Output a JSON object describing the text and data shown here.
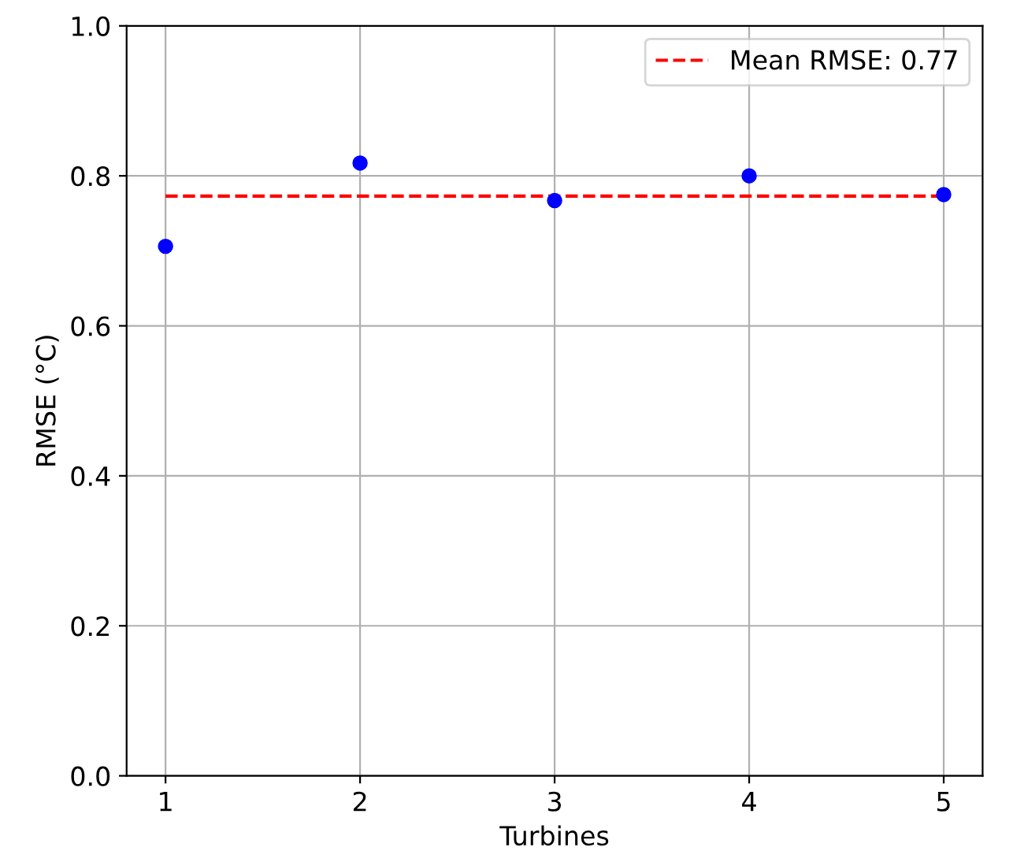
{
  "chart_data": {
    "type": "scatter",
    "xlabel": "Turbines",
    "ylabel": "RMSE (°C)",
    "x": [
      1,
      2,
      3,
      4,
      5
    ],
    "series": [
      {
        "color": "#0000ff",
        "values": [
          0.706,
          0.817,
          0.767,
          0.8,
          0.775
        ]
      }
    ],
    "xlim": [
      0.8,
      5.2
    ],
    "xticks": [
      1,
      2,
      3,
      4,
      5
    ],
    "ylim": [
      0.0,
      1.0
    ],
    "yticks": [
      {
        "value": 0.0,
        "label": "0.0"
      },
      {
        "value": 0.2,
        "label": "0.2"
      },
      {
        "value": 0.4,
        "label": "0.4"
      },
      {
        "value": 0.6,
        "label": "0.6"
      },
      {
        "value": 0.8,
        "label": "0.8"
      },
      {
        "value": 1.0,
        "label": "1.0"
      }
    ],
    "ref_lines": [
      {
        "axis": "y",
        "value": 0.773,
        "label": "Mean RMSE: 0.77",
        "color": "#ff0000",
        "line_style": "dashed"
      }
    ],
    "grid": true,
    "legend": "top right",
    "marker": "circle"
  }
}
